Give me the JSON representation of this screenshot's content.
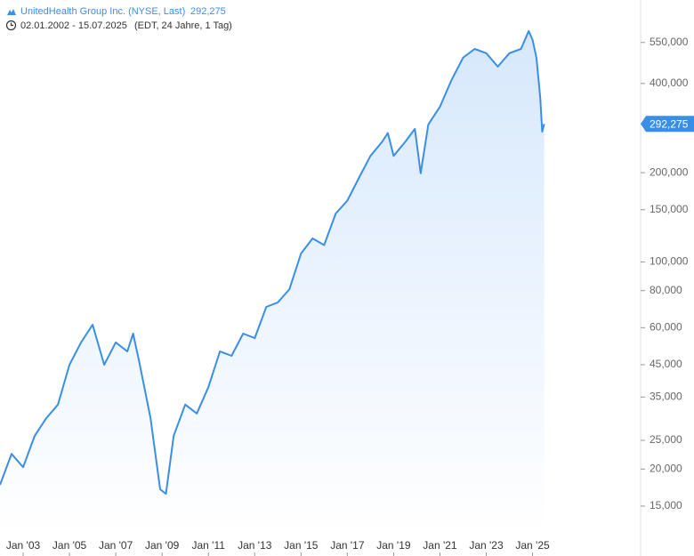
{
  "chart_data": {
    "type": "line",
    "title": "UnitedHealth Group Inc. (NYSE, Last)",
    "date_range": "02.01.2002 - 15.07.2025",
    "subtitle": "(EDT, 24 Jahre, 1 Tag)",
    "last": {
      "value": 292.275,
      "label": "292,275"
    },
    "log_scale": true,
    "x": [
      "2002-01",
      "2002-07",
      "2003-01",
      "2003-07",
      "2004-01",
      "2004-07",
      "2005-01",
      "2005-07",
      "2006-01",
      "2006-07",
      "2007-01",
      "2007-07",
      "2007-10",
      "2008-01",
      "2008-07",
      "2008-12",
      "2009-03",
      "2009-07",
      "2010-01",
      "2010-07",
      "2011-01",
      "2011-07",
      "2012-01",
      "2012-07",
      "2013-01",
      "2013-07",
      "2014-01",
      "2014-07",
      "2015-01",
      "2015-07",
      "2016-01",
      "2016-07",
      "2017-01",
      "2017-07",
      "2018-01",
      "2018-07",
      "2018-10",
      "2019-01",
      "2019-07",
      "2019-12",
      "2020-03",
      "2020-07",
      "2021-01",
      "2021-07",
      "2022-01",
      "2022-07",
      "2023-01",
      "2023-07",
      "2024-01",
      "2024-07",
      "2024-11",
      "2025-01",
      "2025-03",
      "2025-05",
      "2025-06",
      "2025-07"
    ],
    "series": [
      {
        "name": "UnitedHealth Group Inc.",
        "color": "#3a8ee6",
        "values": [
          17.7,
          22.5,
          20.3,
          25.9,
          29.7,
          33,
          45,
          53.5,
          61.4,
          45,
          53.5,
          49.9,
          57.3,
          46.6,
          29.7,
          17.1,
          16.5,
          25.9,
          33,
          30.8,
          37.8,
          49.9,
          48.2,
          57.3,
          55.3,
          70.5,
          73,
          80.9,
          106.7,
          120,
          114,
          145.5,
          161,
          192,
          228,
          254,
          272,
          228,
          254,
          281,
          199,
          291,
          334,
          411,
          489,
          523,
          506,
          456,
          506,
          523,
          601,
          561,
          489,
          358,
          275,
          292.275
        ]
      }
    ],
    "xlim": [
      "2002-01",
      "2029-09"
    ],
    "ylim": [
      12.1,
      765
    ],
    "xticks": [
      {
        "value": "2003-01",
        "label": "Jan '03"
      },
      {
        "value": "2005-01",
        "label": "Jan '05"
      },
      {
        "value": "2007-01",
        "label": "Jan '07"
      },
      {
        "value": "2009-01",
        "label": "Jan '09"
      },
      {
        "value": "2011-01",
        "label": "Jan '11"
      },
      {
        "value": "2013-01",
        "label": "Jan '13"
      },
      {
        "value": "2015-01",
        "label": "Jan '15"
      },
      {
        "value": "2017-01",
        "label": "Jan '17"
      },
      {
        "value": "2019-01",
        "label": "Jan '19"
      },
      {
        "value": "2021-01",
        "label": "Jan '21"
      },
      {
        "value": "2023-01",
        "label": "Jan '23"
      },
      {
        "value": "2025-01",
        "label": "Jan '25"
      }
    ],
    "yticks": [
      {
        "value": 15,
        "label": "15,000"
      },
      {
        "value": 20,
        "label": "20,000"
      },
      {
        "value": 25,
        "label": "25,000"
      },
      {
        "value": 35,
        "label": "35,000"
      },
      {
        "value": 45,
        "label": "45,000"
      },
      {
        "value": 60,
        "label": "60,000"
      },
      {
        "value": 80,
        "label": "80,000"
      },
      {
        "value": 100,
        "label": "100,000"
      },
      {
        "value": 150,
        "label": "150,000"
      },
      {
        "value": 200,
        "label": "200,000"
      },
      {
        "value": 400,
        "label": "400,000"
      },
      {
        "value": 550,
        "label": "550,000"
      }
    ]
  }
}
